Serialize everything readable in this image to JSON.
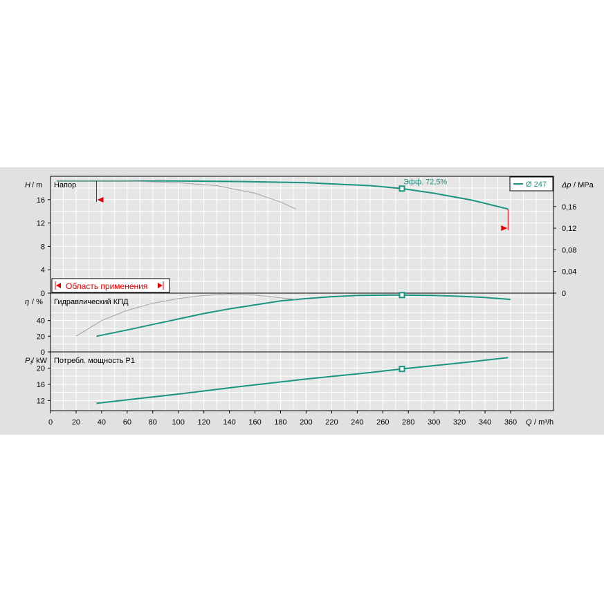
{
  "chart_data": [
    {
      "type": "line",
      "panel": "head",
      "title": "Напор",
      "ylabel_var": "H",
      "ylabel_unit": "/ m",
      "y2label_var": "Δp",
      "y2label_unit": "/ MPa",
      "ylim": [
        0,
        20
      ],
      "yticks": [
        0,
        4,
        8,
        12,
        16
      ],
      "y2lim": [
        0,
        0.2
      ],
      "y2ticks": [
        "0",
        "0,04",
        "0,08",
        "0,12",
        "0,16"
      ],
      "xlim": [
        0,
        380
      ],
      "grid": true,
      "legend": {
        "label": "Ø 247",
        "placement": "top-right"
      },
      "series": [
        {
          "name": "Ø 247",
          "color": "#1a9480",
          "x": [
            5,
            36,
            100,
            150,
            200,
            250,
            275,
            300,
            330,
            358
          ],
          "y": [
            19.2,
            19.2,
            19.2,
            19.1,
            18.9,
            18.4,
            17.9,
            17.1,
            15.9,
            14.4
          ]
        },
        {
          "color": "#a0a0a0",
          "x": [
            5,
            60,
            100,
            130,
            160,
            180,
            192
          ],
          "y": [
            19.2,
            19.2,
            18.9,
            18.4,
            17.1,
            15.6,
            14.4
          ]
        }
      ],
      "operating_point": {
        "x": 275,
        "y": 17.9,
        "label": "Эфф. 72,5%"
      },
      "range_markers": {
        "min": 36,
        "max": 358
      },
      "range_label": "Область применения"
    },
    {
      "type": "line",
      "panel": "efficiency",
      "title": "Гидравлический КПД",
      "ylabel_var": "η",
      "ylabel_unit": "/ %",
      "ylim": [
        0,
        75
      ],
      "yticks": [
        0,
        20,
        40
      ],
      "xlim": [
        0,
        380
      ],
      "grid": true,
      "series": [
        {
          "color": "#1a9480",
          "x": [
            36,
            60,
            80,
            100,
            120,
            140,
            160,
            180,
            200,
            220,
            240,
            260,
            275,
            300,
            320,
            340,
            360
          ],
          "y": [
            20,
            28,
            35,
            42,
            49,
            55,
            60,
            65,
            68,
            70.5,
            72,
            72.4,
            72.5,
            72,
            71,
            69.5,
            67
          ]
        },
        {
          "color": "#a0a0a0",
          "x": [
            20,
            40,
            60,
            80,
            100,
            120,
            140,
            160,
            180,
            192
          ],
          "y": [
            20,
            40,
            53,
            62,
            68,
            72,
            74,
            72.5,
            69,
            67
          ]
        }
      ],
      "operating_point": {
        "x": 275,
        "y": 72.5
      }
    },
    {
      "type": "line",
      "panel": "power",
      "title": "Потребл. мощность P1",
      "ylabel_var": "P₁",
      "ylabel_unit": "/ kW",
      "ylim": [
        9.5,
        24
      ],
      "yticks": [
        12,
        16,
        20
      ],
      "xlim": [
        0,
        380
      ],
      "xticks": [
        0,
        20,
        40,
        60,
        80,
        100,
        120,
        140,
        160,
        180,
        200,
        220,
        240,
        260,
        280,
        300,
        320,
        340,
        360
      ],
      "xlabel_var": "Q",
      "xlabel_unit": "/ m³/h",
      "grid": true,
      "series": [
        {
          "color": "#1a9480",
          "x": [
            36,
            100,
            150,
            200,
            250,
            275,
            300,
            330,
            358
          ],
          "y": [
            11.3,
            13.6,
            15.5,
            17.3,
            18.9,
            19.8,
            20.6,
            21.6,
            22.6
          ]
        }
      ],
      "operating_point": {
        "x": 275,
        "y": 19.8
      }
    }
  ]
}
